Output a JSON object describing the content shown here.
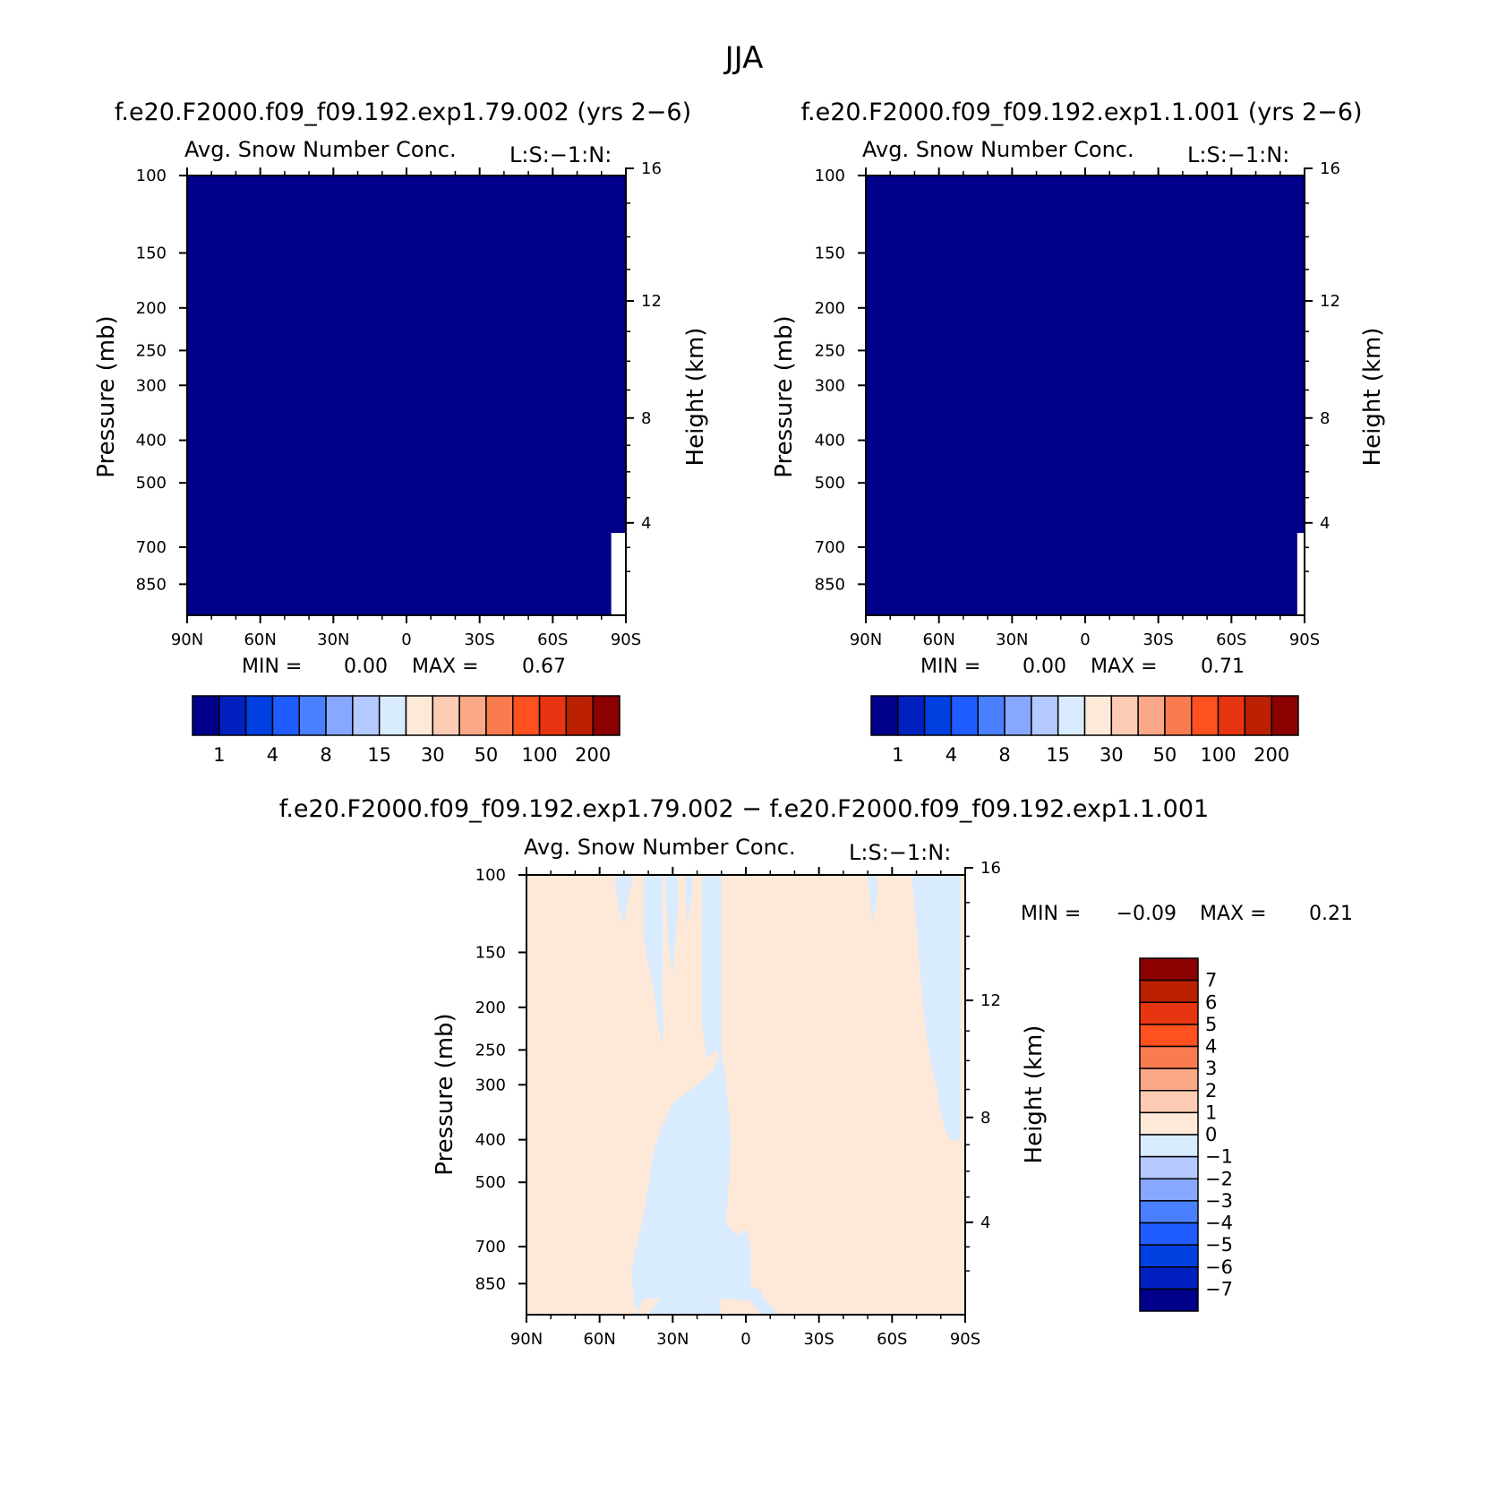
{
  "figure": {
    "title": "JJA"
  },
  "chart_data": [
    {
      "id": "panel1",
      "type": "heatmap",
      "title": "f.e20.F2000.f09_f09.192.exp1.79.002 (yrs 2−6)",
      "subtitle": "Avg. Snow Number Conc.",
      "subtitle_right": "L:S:−1:N:",
      "ylabel": "Pressure (mb)",
      "ylabel_right": "Height (km)",
      "x_ticks": [
        "90N",
        "60N",
        "30N",
        "0",
        "30S",
        "60S",
        "90S"
      ],
      "y_ticks": [
        "100",
        "150",
        "200",
        "250",
        "300",
        "400",
        "500",
        "700",
        "850"
      ],
      "y_tick_values": [
        100,
        150,
        200,
        250,
        300,
        400,
        500,
        700,
        850
      ],
      "y_right_ticks": [
        "16",
        "12",
        "8",
        "4"
      ],
      "y_right_tick_values": [
        16,
        12,
        8,
        4
      ],
      "xlim": [
        90,
        -90
      ],
      "ylim": [
        100,
        1000
      ],
      "y_scale": "log",
      "fill_color": "#00008b",
      "fill_level_from": 0,
      "fill_level_to": 1,
      "missing_region": [
        {
          "lat_from": -84,
          "lat_to": -90,
          "p_from": 650
        },
        {
          "lat_from": -86,
          "lat_to": -90,
          "p_from": 760
        },
        {
          "lat_from": -87,
          "lat_to": -90,
          "p_from": 880
        }
      ],
      "min_label": "MIN =",
      "min_value": "0.00",
      "max_label": "MAX =",
      "max_value": "0.67",
      "colorbar": {
        "orientation": "horizontal",
        "colors": [
          "#00008b",
          "#0021c0",
          "#0040e0",
          "#1e5cff",
          "#4a80ff",
          "#88a8ff",
          "#b4c9ff",
          "#d8ebff",
          "#fee9d8",
          "#fdcbb4",
          "#fba888",
          "#f87c50",
          "#ff5020",
          "#e63510",
          "#bb2000",
          "#8b0000"
        ],
        "labels": [
          "1",
          "4",
          "8",
          "15",
          "30",
          "50",
          "100",
          "200"
        ]
      }
    },
    {
      "id": "panel2",
      "type": "heatmap",
      "title": "f.e20.F2000.f09_f09.192.exp1.1.001 (yrs 2−6)",
      "subtitle": "Avg. Snow Number Conc.",
      "subtitle_right": "L:S:−1:N:",
      "ylabel": "Pressure (mb)",
      "ylabel_right": "Height (km)",
      "x_ticks": [
        "90N",
        "60N",
        "30N",
        "0",
        "30S",
        "60S",
        "90S"
      ],
      "y_ticks": [
        "100",
        "150",
        "200",
        "250",
        "300",
        "400",
        "500",
        "700",
        "850"
      ],
      "y_tick_values": [
        100,
        150,
        200,
        250,
        300,
        400,
        500,
        700,
        850
      ],
      "y_right_ticks": [
        "16",
        "12",
        "8",
        "4"
      ],
      "y_right_tick_values": [
        16,
        12,
        8,
        4
      ],
      "xlim": [
        90,
        -90
      ],
      "ylim": [
        100,
        1000
      ],
      "y_scale": "log",
      "fill_color": "#00008b",
      "fill_level_from": 0,
      "fill_level_to": 1,
      "missing_region": [
        {
          "lat_from": -87,
          "lat_to": -90,
          "p_from": 650
        },
        {
          "lat_from": -88,
          "lat_to": -90,
          "p_from": 760
        },
        {
          "lat_from": -89,
          "lat_to": -90,
          "p_from": 880
        }
      ],
      "min_label": "MIN =",
      "min_value": "0.00",
      "max_label": "MAX =",
      "max_value": "0.71",
      "colorbar": {
        "orientation": "horizontal",
        "colors": [
          "#00008b",
          "#0021c0",
          "#0040e0",
          "#1e5cff",
          "#4a80ff",
          "#88a8ff",
          "#b4c9ff",
          "#d8ebff",
          "#fee9d8",
          "#fdcbb4",
          "#fba888",
          "#f87c50",
          "#ff5020",
          "#e63510",
          "#bb2000",
          "#8b0000"
        ],
        "labels": [
          "1",
          "4",
          "8",
          "15",
          "30",
          "50",
          "100",
          "200"
        ]
      }
    },
    {
      "id": "panel3",
      "type": "heatmap",
      "title": "f.e20.F2000.f09_f09.192.exp1.79.002 − f.e20.F2000.f09_f09.192.exp1.1.001",
      "subtitle": "Avg. Snow Number Conc.",
      "subtitle_right": "L:S:−1:N:",
      "ylabel": "Pressure (mb)",
      "ylabel_right": "Height (km)",
      "x_ticks": [
        "90N",
        "60N",
        "30N",
        "0",
        "30S",
        "60S",
        "90S"
      ],
      "y_ticks": [
        "100",
        "150",
        "200",
        "250",
        "300",
        "400",
        "500",
        "700",
        "850"
      ],
      "y_tick_values": [
        100,
        150,
        200,
        250,
        300,
        400,
        500,
        700,
        850
      ],
      "y_right_ticks": [
        "16",
        "12",
        "8",
        "4"
      ],
      "y_right_tick_values": [
        16,
        12,
        8,
        4
      ],
      "xlim": [
        90,
        -90
      ],
      "ylim": [
        100,
        1000
      ],
      "y_scale": "log",
      "background_level": "0 to 1",
      "background_color": "#fee9d8",
      "negative_color": "#d8ebff",
      "negative_regions": [
        [
          [
            50,
            1000
          ],
          [
            55,
            920
          ],
          [
            58,
            760
          ],
          [
            62,
            720
          ],
          [
            68,
            700
          ],
          [
            70,
            740
          ],
          [
            75,
            800
          ],
          [
            78,
            850
          ],
          [
            80,
            1000
          ]
        ],
        [
          [
            47,
            1000
          ],
          [
            44,
            940
          ],
          [
            43,
            780
          ],
          [
            48,
            600
          ],
          [
            52,
            430
          ],
          [
            55,
            380
          ],
          [
            60,
            330
          ],
          [
            70,
            300
          ],
          [
            76,
            280
          ],
          [
            80,
            250
          ],
          [
            82,
            300
          ],
          [
            84,
            400
          ],
          [
            82,
            620
          ],
          [
            86,
            660
          ],
          [
            90,
            640
          ],
          [
            92,
            700
          ],
          [
            92,
            860
          ],
          [
            96,
            880
          ],
          [
            98,
            930
          ],
          [
            100,
            950
          ],
          [
            104,
            1000
          ],
          [
            96,
            1000
          ],
          [
            92,
            930
          ],
          [
            80,
            920
          ],
          [
            60,
            920
          ],
          [
            48,
            920
          ],
          [
            45,
            1000
          ]
        ],
        [
          [
            36,
            100
          ],
          [
            38,
            120
          ],
          [
            40,
            130
          ],
          [
            42,
            110
          ],
          [
            44,
            100
          ]
        ],
        [
          [
            48,
            100
          ],
          [
            48,
            140
          ],
          [
            52,
            180
          ],
          [
            54,
            220
          ],
          [
            56,
            245
          ],
          [
            56,
            100
          ]
        ],
        [
          [
            57,
            100
          ],
          [
            58,
            140
          ],
          [
            60,
            170
          ],
          [
            62,
            120
          ],
          [
            62,
            100
          ]
        ],
        [
          [
            65,
            100
          ],
          [
            66,
            130
          ],
          [
            68,
            110
          ],
          [
            68,
            100
          ]
        ],
        [
          [
            72,
            100
          ],
          [
            72,
            220
          ],
          [
            74,
            260
          ],
          [
            78,
            250
          ],
          [
            80,
            270
          ],
          [
            80,
            100
          ]
        ],
        [
          [
            158,
            100
          ],
          [
            160,
            130
          ],
          [
            162,
            180
          ],
          [
            164,
            230
          ],
          [
            166,
            270
          ],
          [
            168,
            300
          ],
          [
            170,
            350
          ],
          [
            172,
            380
          ],
          [
            174,
            400
          ],
          [
            178,
            400
          ],
          [
            178,
            100
          ]
        ],
        [
          [
            140,
            100
          ],
          [
            142,
            130
          ],
          [
            144,
            110
          ],
          [
            144,
            100
          ]
        ]
      ],
      "min_label": "MIN =",
      "min_value": "−0.09",
      "max_label": "MAX =",
      "max_value": "0.21",
      "colorbar": {
        "orientation": "vertical",
        "colors": [
          "#8b0000",
          "#bb2000",
          "#e63510",
          "#ff5020",
          "#f87c50",
          "#fba888",
          "#fdcbb4",
          "#fee9d8",
          "#d8ebff",
          "#b4c9ff",
          "#88a8ff",
          "#4a80ff",
          "#1e5cff",
          "#0040e0",
          "#0021c0",
          "#00008b"
        ],
        "labels": [
          "7",
          "6",
          "5",
          "4",
          "3",
          "2",
          "1",
          "0",
          "−1",
          "−2",
          "−3",
          "−4",
          "−5",
          "−6",
          "−7"
        ]
      }
    }
  ]
}
